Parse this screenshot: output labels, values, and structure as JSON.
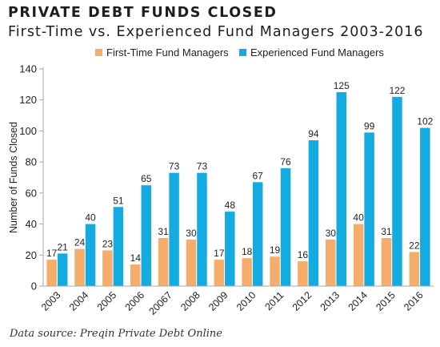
{
  "header": {
    "title": "PRIVATE DEBT FUNDS CLOSED",
    "subtitle": "First-Time vs. Experienced Fund Managers 2003-2016"
  },
  "footer": {
    "source": "Data source: Preqin Private Debt Online"
  },
  "colors": {
    "first_time": "#f5ad6b",
    "experienced": "#14abe0",
    "axis": "#aaaaaa",
    "text": "#222222"
  },
  "chart_data": {
    "type": "bar",
    "title": "PRIVATE DEBT FUNDS CLOSED",
    "subtitle": "First-Time vs. Experienced Fund Managers 2003-2016",
    "xlabel": "",
    "ylabel": "Number of Funds Closed",
    "ylim": [
      0,
      140
    ],
    "yticks": [
      0,
      20,
      40,
      60,
      80,
      100,
      120,
      140
    ],
    "grid": false,
    "legend": "top-center",
    "categories": [
      "2003",
      "2004",
      "2005",
      "2006",
      "20067",
      "2008",
      "2009",
      "2010",
      "2011",
      "2012",
      "2013",
      "2014",
      "2015",
      "2016"
    ],
    "series": [
      {
        "name": "First-Time Fund Managers",
        "values": [
          17,
          24,
          23,
          14,
          31,
          30,
          17,
          18,
          19,
          16,
          30,
          40,
          31,
          22
        ]
      },
      {
        "name": "Experienced Fund Managers",
        "values": [
          21,
          40,
          51,
          65,
          73,
          73,
          48,
          67,
          76,
          94,
          125,
          99,
          122,
          102
        ]
      }
    ]
  }
}
